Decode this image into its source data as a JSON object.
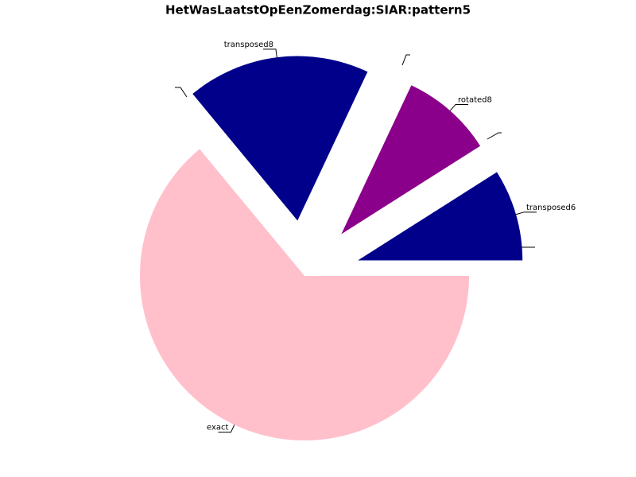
{
  "chart_data": {
    "type": "pie",
    "title": "HetWasLaatstOpEenZomerdag:SIAR:pattern5",
    "categories": [
      "transposed6",
      "rotated8",
      "transposed8",
      "exact"
    ],
    "values": [
      9,
      9,
      18,
      64
    ],
    "colors": [
      "#00008b",
      "#8b008b",
      "#00008b",
      "#ffc0cb"
    ]
  }
}
